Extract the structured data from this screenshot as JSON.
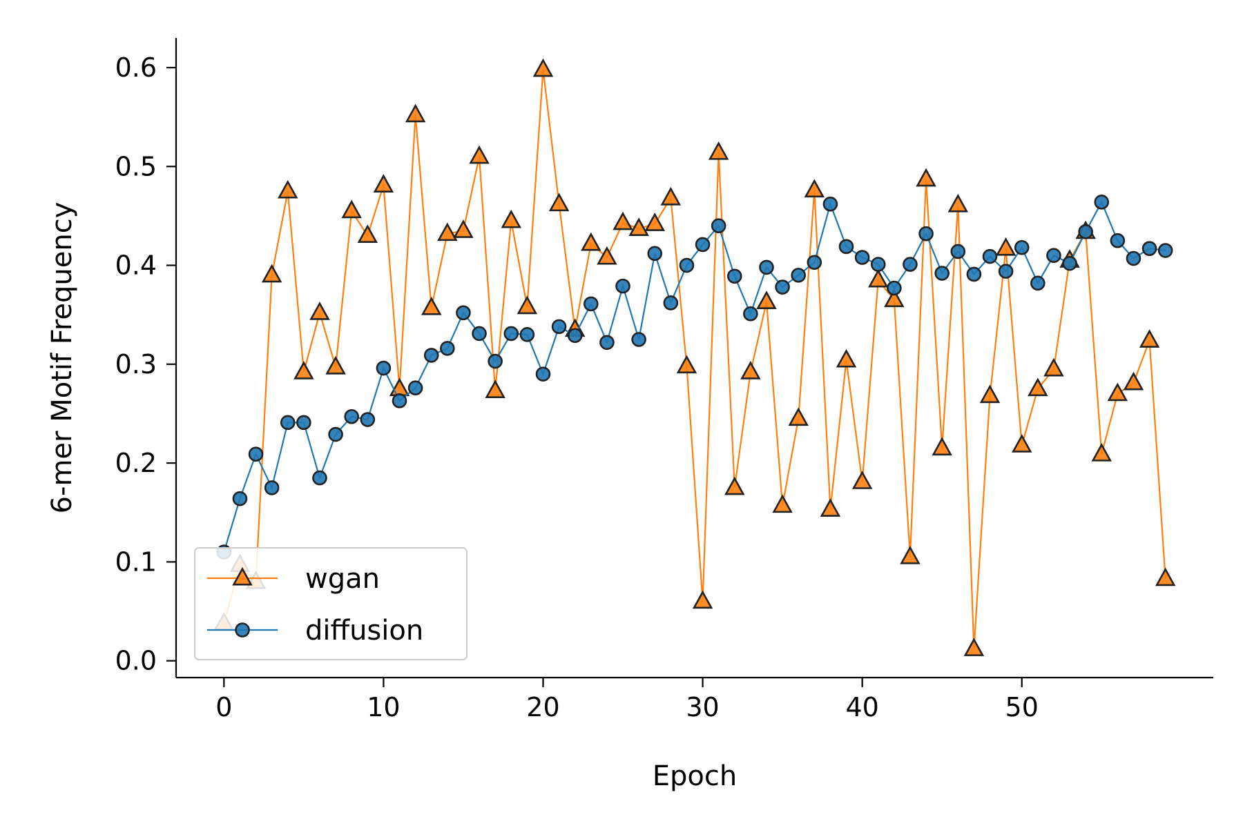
{
  "chart_data": {
    "type": "line",
    "title": "",
    "xlabel": "Epoch",
    "ylabel": "6-mer Motif Frequency",
    "xlim": [
      -3,
      62
    ],
    "ylim": [
      -0.017,
      0.63
    ],
    "x_ticks": [
      0,
      10,
      20,
      30,
      40,
      50
    ],
    "y_ticks": [
      0.0,
      0.1,
      0.2,
      0.3,
      0.4,
      0.5,
      0.6
    ],
    "y_tick_labels": [
      "0.0",
      "0.1",
      "0.2",
      "0.3",
      "0.4",
      "0.5",
      "0.6"
    ],
    "grid": false,
    "legend_position": "lower-left",
    "x": [
      0,
      1,
      2,
      3,
      4,
      5,
      6,
      7,
      8,
      9,
      10,
      11,
      12,
      13,
      14,
      15,
      16,
      17,
      18,
      19,
      20,
      21,
      22,
      23,
      24,
      25,
      26,
      27,
      28,
      29,
      30,
      31,
      32,
      33,
      34,
      35,
      36,
      37,
      38,
      39,
      40,
      41,
      42,
      43,
      44,
      45,
      46,
      47,
      48,
      49,
      50,
      51,
      52,
      53,
      54,
      55,
      56,
      57,
      58,
      59
    ],
    "series": [
      {
        "name": "wgan",
        "color": "#ff7f0e",
        "marker": "triangle",
        "values": [
          0.038,
          0.097,
          0.08,
          0.39,
          0.475,
          0.292,
          0.352,
          0.297,
          0.455,
          0.43,
          0.481,
          0.275,
          0.552,
          0.357,
          0.432,
          0.435,
          0.51,
          0.273,
          0.445,
          0.358,
          0.598,
          0.462,
          0.335,
          0.422,
          0.408,
          0.443,
          0.437,
          0.442,
          0.468,
          0.298,
          0.06,
          0.514,
          0.175,
          0.292,
          0.363,
          0.157,
          0.245,
          0.476,
          0.153,
          0.304,
          0.181,
          0.385,
          0.365,
          0.105,
          0.487,
          0.215,
          0.461,
          0.012,
          0.268,
          0.417,
          0.218,
          0.275,
          0.295,
          0.405,
          0.434,
          0.209,
          0.27,
          0.281,
          0.324,
          0.083
        ]
      },
      {
        "name": "diffusion",
        "color": "#1f77b4",
        "marker": "circle",
        "values": [
          0.11,
          0.164,
          0.209,
          0.175,
          0.241,
          0.241,
          0.185,
          0.229,
          0.247,
          0.244,
          0.296,
          0.263,
          0.276,
          0.309,
          0.316,
          0.352,
          0.331,
          0.303,
          0.331,
          0.33,
          0.29,
          0.338,
          0.329,
          0.361,
          0.322,
          0.379,
          0.325,
          0.412,
          0.362,
          0.4,
          0.421,
          0.44,
          0.389,
          0.351,
          0.398,
          0.378,
          0.39,
          0.403,
          0.462,
          0.419,
          0.408,
          0.401,
          0.377,
          0.401,
          0.432,
          0.392,
          0.414,
          0.391,
          0.409,
          0.394,
          0.418,
          0.382,
          0.41,
          0.402,
          0.434,
          0.464,
          0.425,
          0.407,
          0.417,
          0.415
        ]
      }
    ]
  }
}
